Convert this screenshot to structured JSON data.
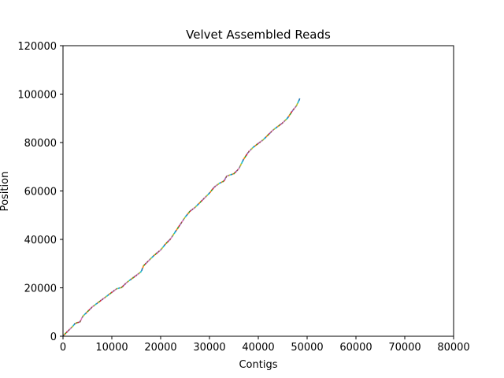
{
  "chart_data": {
    "type": "scatter",
    "title": "Velvet Assembled Reads",
    "xlabel": "Contigs",
    "ylabel": "Position",
    "xlim": [
      0,
      80000
    ],
    "ylim": [
      0,
      120000
    ],
    "xticks": [
      0,
      10000,
      20000,
      30000,
      40000,
      50000,
      60000,
      70000,
      80000
    ],
    "yticks": [
      0,
      20000,
      40000,
      60000,
      80000,
      100000,
      120000
    ],
    "xtick_labels": [
      "0",
      "10000",
      "20000",
      "30000",
      "40000",
      "50000",
      "60000",
      "70000",
      "80000"
    ],
    "ytick_labels": [
      "0",
      "20000",
      "40000",
      "60000",
      "80000",
      "100000",
      "120000"
    ],
    "grid": false,
    "legend": "none",
    "palette": [
      "#1f77b4",
      "#ff7f0e",
      "#2ca02c",
      "#d62728",
      "#9467bd",
      "#8c564b",
      "#e377c2",
      "#7f7f7f",
      "#bcbd22",
      "#17becf"
    ],
    "curve": [
      [
        0,
        0
      ],
      [
        1000,
        2000
      ],
      [
        2000,
        4000
      ],
      [
        2500,
        5200
      ],
      [
        3500,
        5800
      ],
      [
        4000,
        8000
      ],
      [
        5000,
        10000
      ],
      [
        6000,
        12000
      ],
      [
        7000,
        13500
      ],
      [
        8000,
        15000
      ],
      [
        9000,
        16500
      ],
      [
        10000,
        18000
      ],
      [
        11000,
        19500
      ],
      [
        12000,
        20000
      ],
      [
        13000,
        22000
      ],
      [
        14000,
        23500
      ],
      [
        15000,
        25000
      ],
      [
        16000,
        26500
      ],
      [
        16500,
        29000
      ],
      [
        17500,
        31000
      ],
      [
        18500,
        33000
      ],
      [
        20000,
        35500
      ],
      [
        21000,
        38000
      ],
      [
        22000,
        40000
      ],
      [
        23000,
        43000
      ],
      [
        24000,
        46000
      ],
      [
        25000,
        49000
      ],
      [
        26000,
        51500
      ],
      [
        27000,
        53000
      ],
      [
        28000,
        55000
      ],
      [
        29000,
        57000
      ],
      [
        30000,
        59000
      ],
      [
        31000,
        61500
      ],
      [
        32000,
        63000
      ],
      [
        33000,
        64000
      ],
      [
        33500,
        66000
      ],
      [
        35000,
        67000
      ],
      [
        36000,
        69000
      ],
      [
        37000,
        73000
      ],
      [
        38000,
        76000
      ],
      [
        39000,
        78000
      ],
      [
        40000,
        79500
      ],
      [
        41000,
        81000
      ],
      [
        42000,
        83000
      ],
      [
        43000,
        85000
      ],
      [
        44000,
        86500
      ],
      [
        45000,
        88000
      ],
      [
        46000,
        90000
      ],
      [
        47000,
        93000
      ],
      [
        47800,
        95000
      ],
      [
        48500,
        98000
      ]
    ]
  }
}
